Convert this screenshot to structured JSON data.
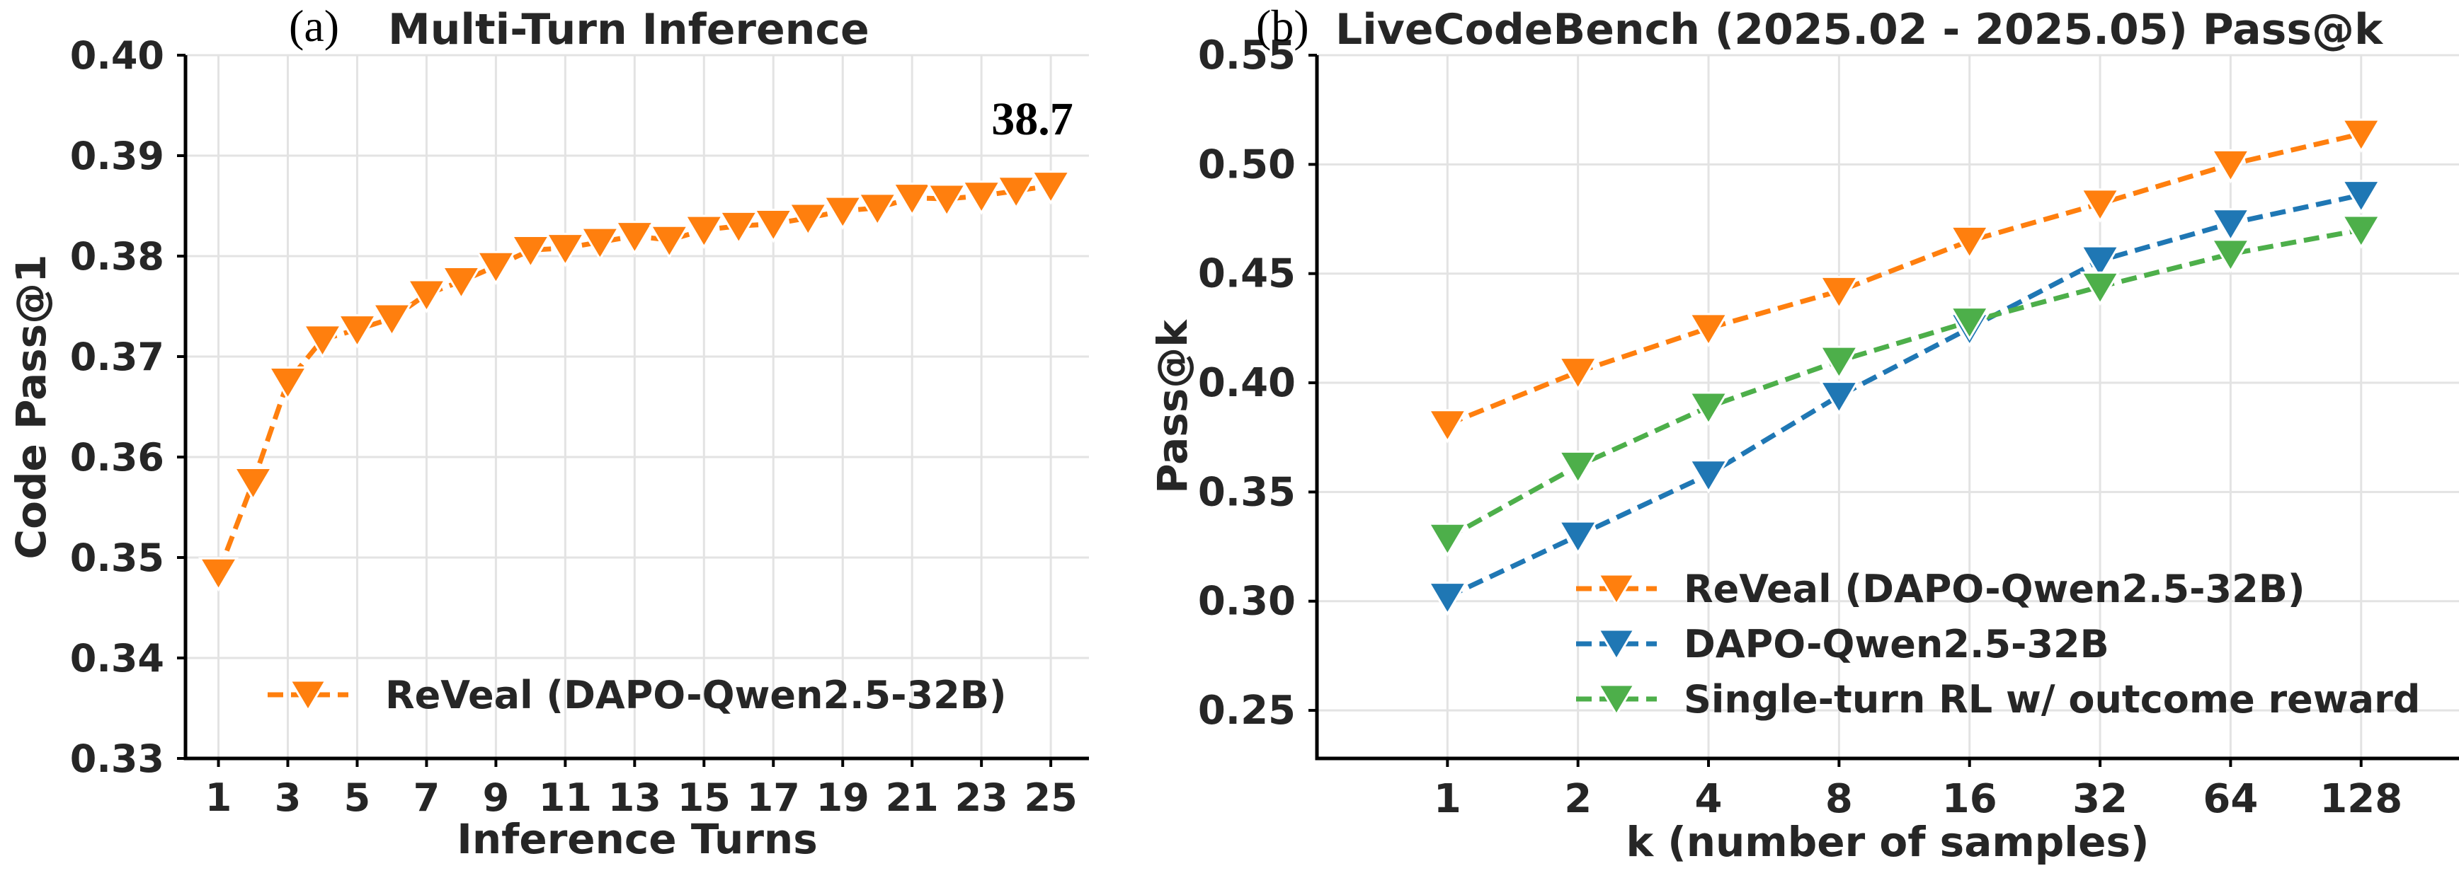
{
  "chart_data": [
    {
      "type": "line",
      "panel_label": "(a)",
      "title": "Multi-Turn Inference",
      "xlabel": "Inference Turns",
      "ylabel": "Code Pass@1",
      "xlim": [
        0.05,
        26.1
      ],
      "ylim": [
        0.33,
        0.4
      ],
      "xticks": [
        1,
        3,
        5,
        7,
        9,
        11,
        13,
        15,
        17,
        19,
        21,
        23,
        25
      ],
      "yticks": [
        0.33,
        0.34,
        0.35,
        0.36,
        0.37,
        0.38,
        0.39,
        0.4
      ],
      "ytick_labels": [
        "0.33",
        "0.34",
        "0.35",
        "0.36",
        "0.37",
        "0.38",
        "0.39",
        "0.40"
      ],
      "grid": true,
      "legend_position": "lower-right",
      "annotation": {
        "text": "38.7",
        "x": 24,
        "y": 0.3938
      },
      "series": [
        {
          "name": "ReVeal (DAPO-Qwen2.5-32B)",
          "color": "#ff7f0e",
          "marker": "triangle-down",
          "linestyle": "dashed",
          "x": [
            1,
            2,
            3,
            4,
            5,
            6,
            7,
            8,
            9,
            10,
            11,
            12,
            13,
            14,
            15,
            16,
            17,
            18,
            19,
            20,
            21,
            22,
            23,
            24,
            25
          ],
          "values": [
            0.3485,
            0.3575,
            0.3675,
            0.3717,
            0.3727,
            0.3738,
            0.3762,
            0.3775,
            0.379,
            0.3806,
            0.3808,
            0.3814,
            0.382,
            0.3816,
            0.3826,
            0.383,
            0.3832,
            0.3838,
            0.3845,
            0.3848,
            0.3858,
            0.3857,
            0.386,
            0.3865,
            0.387
          ]
        }
      ]
    },
    {
      "type": "line",
      "panel_label": "(b)",
      "title": "LiveCodeBench (2025.02 - 2025.05) Pass@k",
      "xlabel": "k (number of samples)",
      "ylabel": "Pass@k",
      "categories": [
        "1",
        "2",
        "4",
        "8",
        "16",
        "32",
        "64",
        "128"
      ],
      "xlim": [
        -1.0,
        7.75
      ],
      "ylim": [
        0.228,
        0.55
      ],
      "yticks": [
        0.25,
        0.3,
        0.35,
        0.4,
        0.45,
        0.5,
        0.55
      ],
      "ytick_labels": [
        "0.25",
        "0.30",
        "0.35",
        "0.40",
        "0.45",
        "0.50",
        "0.55"
      ],
      "grid": true,
      "legend_position": "lower-right",
      "series": [
        {
          "name": "ReVeal (DAPO-Qwen2.5-32B)",
          "color": "#ff7f0e",
          "marker": "triangle-down",
          "linestyle": "dashed",
          "values": [
            0.381,
            0.405,
            0.425,
            0.442,
            0.465,
            0.482,
            0.5,
            0.514
          ]
        },
        {
          "name": "DAPO-Qwen2.5-32B",
          "color": "#1f77b4",
          "marker": "triangle-down",
          "linestyle": "dashed",
          "values": [
            0.302,
            0.33,
            0.358,
            0.394,
            0.425,
            0.456,
            0.473,
            0.486
          ]
        },
        {
          "name": "Single-turn RL w/ outcome reward",
          "color": "#4daf4a",
          "marker": "triangle-down",
          "linestyle": "dashed",
          "values": [
            0.329,
            0.362,
            0.389,
            0.41,
            0.428,
            0.444,
            0.459,
            0.47
          ]
        }
      ]
    }
  ]
}
